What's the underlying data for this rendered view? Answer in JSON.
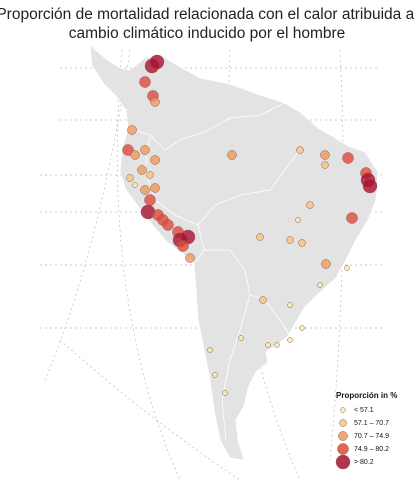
{
  "title": [
    "Proporción de mortalidad relacionada con el calor atribuida al",
    "cambio climático inducido por el hombre"
  ],
  "legend": {
    "title": "Proporción in %",
    "items": [
      {
        "label": "< 57.1",
        "color": "#f4efb0"
      },
      {
        "label": "57.1 – 70.7",
        "color": "#f5c47c"
      },
      {
        "label": "70.7 – 74.9",
        "color": "#ee9a5a"
      },
      {
        "label": "74.9 – 80.2",
        "color": "#de4a3c"
      },
      {
        "label": "> 80.2",
        "color": "#a8102e"
      }
    ]
  }
}
